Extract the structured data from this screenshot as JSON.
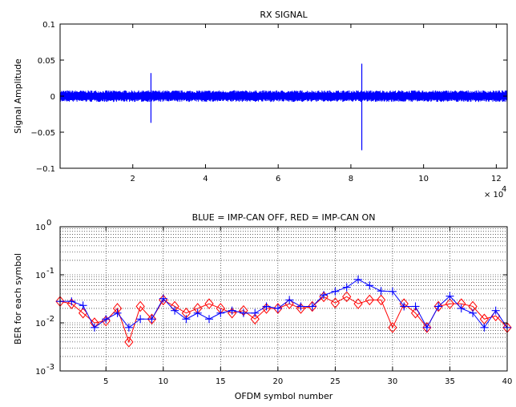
{
  "chart_data": [
    {
      "type": "line",
      "title": "RX SIGNAL",
      "xlabel": "",
      "ylabel": "Signal Amplitude",
      "xlim": [
        0,
        123000
      ],
      "ylim": [
        -0.1,
        0.1
      ],
      "x_exponent_label": "× 10",
      "x_exponent_power": "4",
      "xticks": [
        20000,
        40000,
        60000,
        80000,
        100000,
        120000
      ],
      "xtick_labels": [
        "2",
        "4",
        "6",
        "8",
        "10",
        "12"
      ],
      "yticks": [
        -0.1,
        -0.05,
        0,
        0.05,
        0.1
      ],
      "ytick_labels": [
        "−0.1",
        "−0.05",
        "0",
        "0.05",
        "0.1"
      ],
      "grid": false,
      "series": [
        {
          "color": "#0000ff",
          "noise_amplitude": 0.008,
          "spikes": [
            {
              "x": 25000,
              "min": -0.037,
              "max": 0.032
            },
            {
              "x": 83000,
              "min": -0.075,
              "max": 0.045
            }
          ]
        }
      ]
    },
    {
      "type": "line",
      "title": "BLUE =  IMP-CAN OFF,  RED = IMP-CAN ON",
      "xlabel": "OFDM symbol number",
      "ylabel": "BER for each symbol",
      "xlim": [
        1,
        40
      ],
      "ylim": [
        0.001,
        1
      ],
      "yscale": "log",
      "xticks": [
        5,
        10,
        15,
        20,
        25,
        30,
        35,
        40
      ],
      "xtick_labels": [
        "5",
        "10",
        "15",
        "20",
        "25",
        "30",
        "35",
        "40"
      ],
      "ytick_bases": [
        "10",
        "10",
        "10",
        "10"
      ],
      "ytick_powers": [
        "-3",
        "-2",
        "-1",
        "0"
      ],
      "grid": true,
      "x": [
        1,
        2,
        3,
        4,
        5,
        6,
        7,
        8,
        9,
        10,
        11,
        12,
        13,
        14,
        15,
        16,
        17,
        18,
        19,
        20,
        21,
        22,
        23,
        24,
        25,
        26,
        27,
        28,
        29,
        30,
        31,
        32,
        33,
        34,
        35,
        36,
        37,
        38,
        39,
        40
      ],
      "series": [
        {
          "color": "#0000ff",
          "marker": "plus",
          "values": [
            0.028,
            0.028,
            0.023,
            0.008,
            0.012,
            0.016,
            0.008,
            0.012,
            0.012,
            0.032,
            0.018,
            0.012,
            0.016,
            0.012,
            0.016,
            0.018,
            0.016,
            0.016,
            0.022,
            0.02,
            0.03,
            0.022,
            0.022,
            0.038,
            0.045,
            0.055,
            0.08,
            0.06,
            0.046,
            0.045,
            0.022,
            0.022,
            0.008,
            0.022,
            0.036,
            0.02,
            0.016,
            0.008,
            0.018,
            0.008
          ]
        },
        {
          "color": "#ff0000",
          "marker": "diamond",
          "values": [
            0.028,
            0.025,
            0.016,
            0.01,
            0.011,
            0.02,
            0.004,
            0.022,
            0.012,
            0.03,
            0.022,
            0.016,
            0.02,
            0.025,
            0.02,
            0.016,
            0.018,
            0.012,
            0.02,
            0.02,
            0.025,
            0.02,
            0.022,
            0.035,
            0.026,
            0.035,
            0.025,
            0.03,
            0.03,
            0.008,
            0.025,
            0.016,
            0.008,
            0.022,
            0.025,
            0.025,
            0.022,
            0.012,
            0.014,
            0.008
          ]
        }
      ]
    }
  ]
}
